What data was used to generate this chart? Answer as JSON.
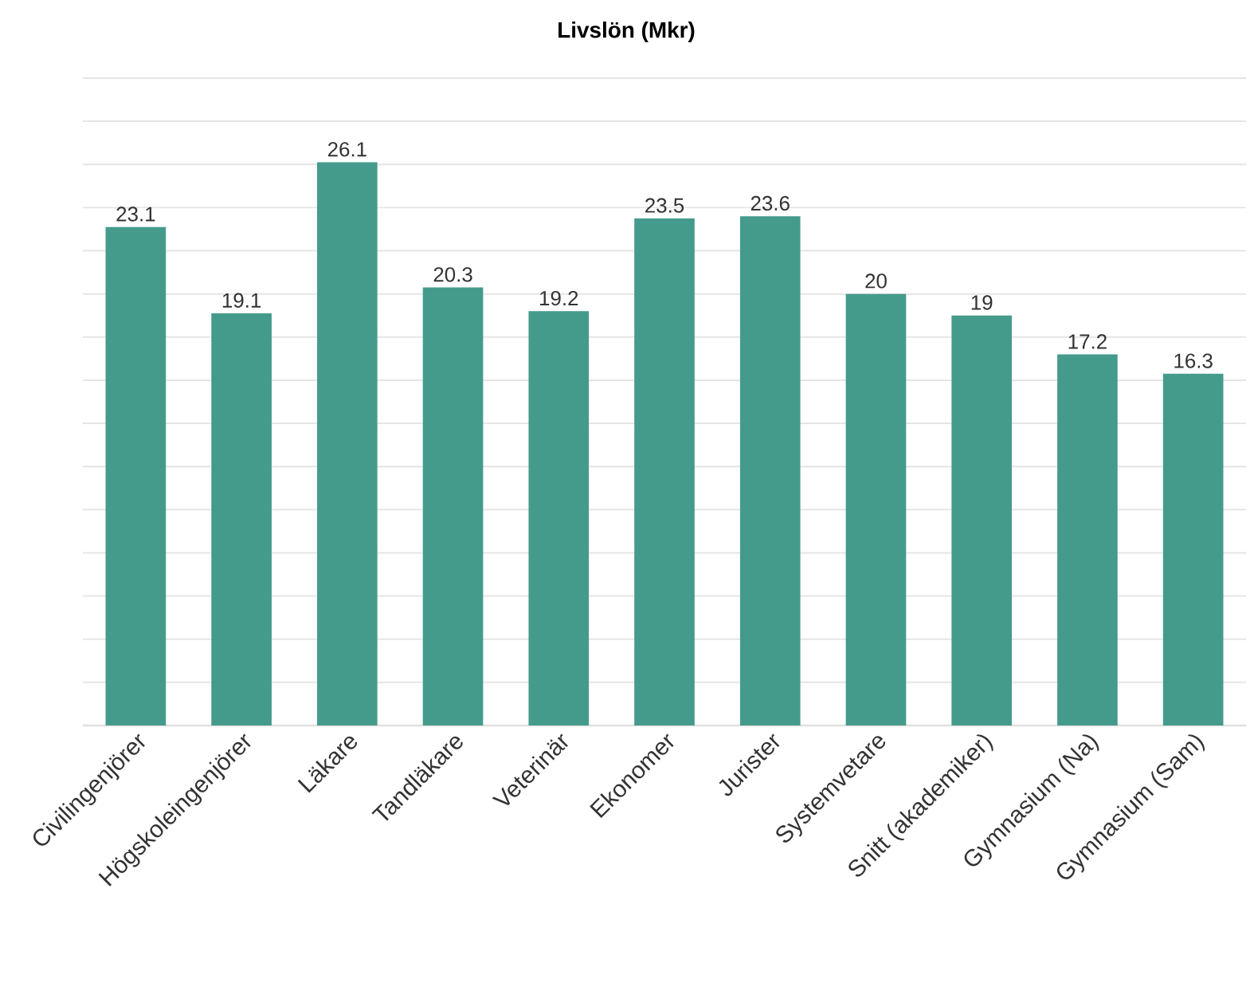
{
  "chart_data": {
    "type": "bar",
    "title": "Livslön (Mkr)",
    "categories": [
      "Civilingenjörer",
      "Högskoleingenjörer",
      "Läkare",
      "Tandläkare",
      "Veterinär",
      "Ekonomer",
      "Jurister",
      "Systemvetare",
      "Snitt (akademiker)",
      "Gymnasium (Na)",
      "Gymnasium (Sam)"
    ],
    "values": [
      23.1,
      19.1,
      26.1,
      20.3,
      19.2,
      23.5,
      23.6,
      20,
      19,
      17.2,
      16.3
    ],
    "color": "#459b8b",
    "data_labels": true,
    "grid": "y",
    "tick_labels": "x",
    "ylim": [
      0,
      30
    ]
  }
}
